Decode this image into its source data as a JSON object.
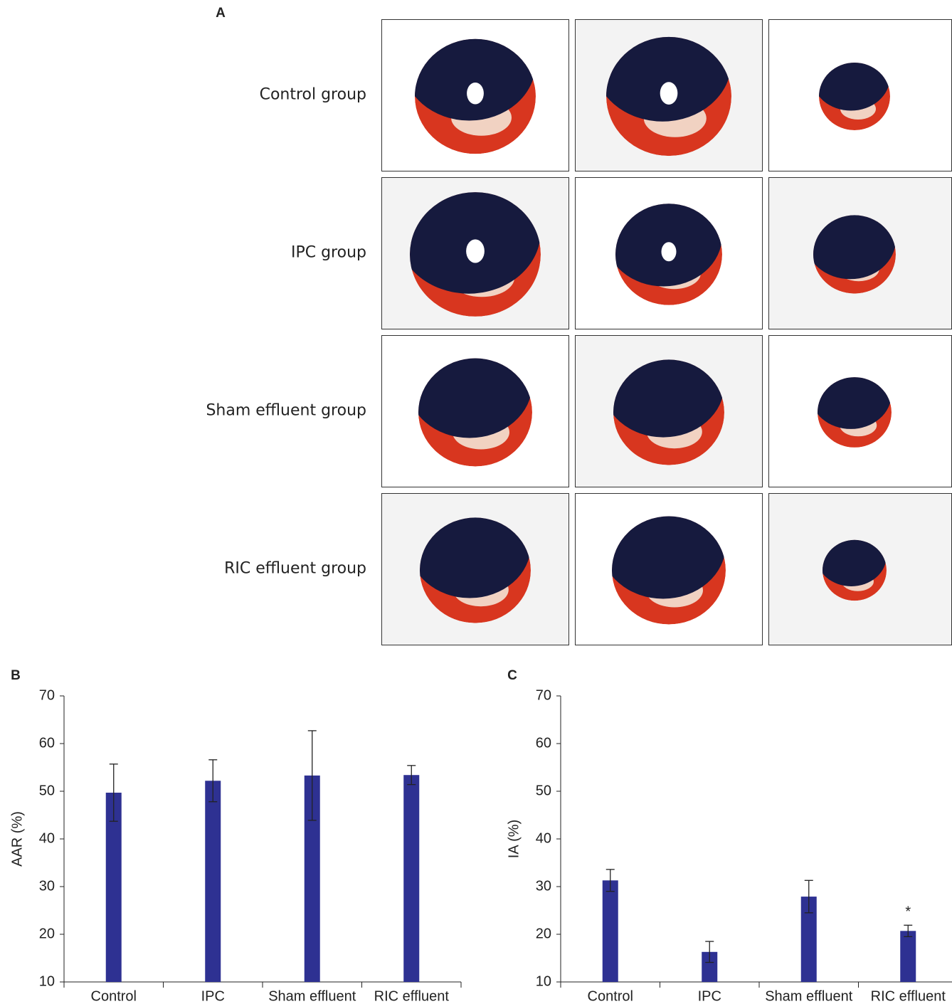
{
  "panel_a": {
    "label": "A",
    "row_labels": [
      "Control group",
      "IPC group",
      "Sham effluent group",
      "RIC effluent group"
    ]
  },
  "chart_data": [
    {
      "type": "bar",
      "panel_label": "B",
      "y_label": "AAR (%)",
      "categories": [
        "Control",
        "IPC",
        "Sham effluent",
        "RIC effluent"
      ],
      "values": [
        49.7,
        52.2,
        53.3,
        53.4
      ],
      "errors": [
        6.0,
        4.4,
        9.4,
        2.0
      ],
      "color": "#2e3192",
      "ylim": [
        10,
        70
      ],
      "yticks": [
        10,
        20,
        30,
        40,
        50,
        60,
        70
      ]
    },
    {
      "type": "bar",
      "panel_label": "C",
      "y_label": "IA (%)",
      "categories": [
        "Control",
        "IPC",
        "Sham effluent",
        "RIC effluent"
      ],
      "values": [
        31.3,
        16.3,
        27.9,
        20.7
      ],
      "errors": [
        2.3,
        2.2,
        3.4,
        1.2
      ],
      "color": "#2e3192",
      "ylim": [
        10,
        70
      ],
      "yticks": [
        10,
        20,
        30,
        40,
        50,
        60,
        70
      ],
      "annotation": "*"
    }
  ]
}
